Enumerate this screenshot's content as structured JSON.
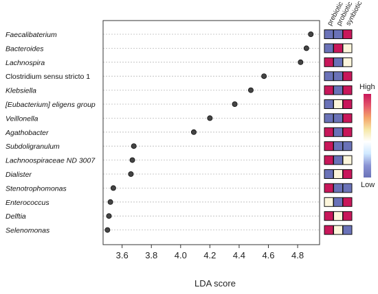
{
  "chart_data": {
    "type": "scatter",
    "xlabel": "LDA score",
    "xlim": [
      3.47,
      4.95
    ],
    "x_ticks": [
      "3.6",
      "3.8",
      "4.0",
      "4.2",
      "4.4",
      "4.6",
      "4.8"
    ],
    "x_tick_values": [
      3.6,
      3.8,
      4.0,
      4.2,
      4.4,
      4.6,
      4.8
    ],
    "taxa": [
      {
        "name": "Faecalibaterium",
        "italic": true,
        "lda": 4.89,
        "levels": [
          "low",
          "low",
          "high"
        ]
      },
      {
        "name": "Bacteroides",
        "italic": true,
        "lda": 4.86,
        "levels": [
          "low",
          "high",
          "mid"
        ]
      },
      {
        "name": "Lachnospira",
        "italic": true,
        "lda": 4.82,
        "levels": [
          "high",
          "low",
          "mid"
        ]
      },
      {
        "name": "Clostridium sensu stricto 1",
        "italic": false,
        "lda": 4.57,
        "levels": [
          "low",
          "low",
          "high"
        ]
      },
      {
        "name": "Klebsiella",
        "italic": true,
        "lda": 4.48,
        "levels": [
          "high",
          "low",
          "high"
        ]
      },
      {
        "name": "[Eubacterium] eligens group",
        "italic": true,
        "lda": 4.37,
        "levels": [
          "low",
          "mid",
          "high"
        ]
      },
      {
        "name": "Veillonella",
        "italic": true,
        "lda": 4.2,
        "levels": [
          "low",
          "low",
          "high"
        ]
      },
      {
        "name": "Agathobacter",
        "italic": true,
        "lda": 4.09,
        "levels": [
          "high",
          "low",
          "high"
        ]
      },
      {
        "name": "Subdoligranulum",
        "italic": true,
        "lda": 3.68,
        "levels": [
          "high",
          "low",
          "low"
        ]
      },
      {
        "name": "Lachnoospiraceae ND 3007",
        "italic": true,
        "lda": 3.67,
        "levels": [
          "high",
          "low",
          "mid"
        ]
      },
      {
        "name": "Dialister",
        "italic": true,
        "lda": 3.66,
        "levels": [
          "low",
          "mid",
          "high"
        ]
      },
      {
        "name": "Stenotrophomonas",
        "italic": true,
        "lda": 3.54,
        "levels": [
          "high",
          "low",
          "low"
        ]
      },
      {
        "name": "Enterococcus",
        "italic": true,
        "lda": 3.52,
        "levels": [
          "mid",
          "low",
          "high"
        ]
      },
      {
        "name": "Delftia",
        "italic": true,
        "lda": 3.51,
        "levels": [
          "high",
          "mid",
          "high"
        ]
      },
      {
        "name": "Selenomonas",
        "italic": true,
        "lda": 3.5,
        "levels": [
          "high",
          "mid",
          "low"
        ]
      }
    ],
    "heatmap_columns": [
      "prebiotic",
      "probiotic",
      "synbiotic"
    ],
    "level_colors": {
      "high": "#c8175a",
      "mid": "#fdf6dc",
      "low": "#6a72b8"
    },
    "legend": {
      "high_label": "High",
      "low_label": "Low",
      "gradient": [
        "#c8175a",
        "#e4566a",
        "#f4a56a",
        "#f6e8a8",
        "#ffffff",
        "#cfe9ff",
        "#8a94d4",
        "#6a72b8"
      ]
    },
    "point_color": "#444444",
    "grid": true
  }
}
